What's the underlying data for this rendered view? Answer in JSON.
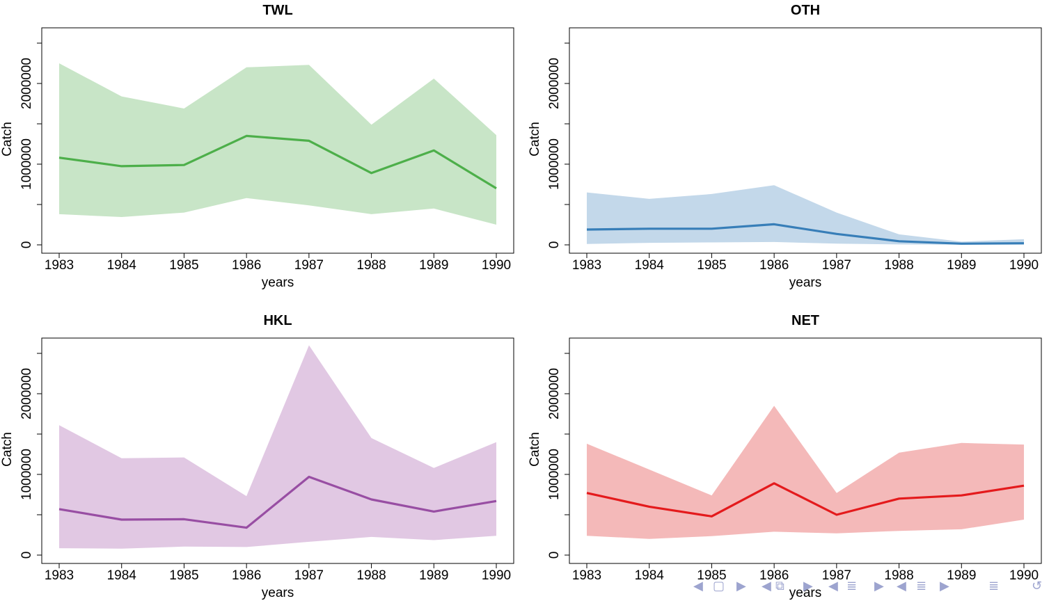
{
  "chart_data": [
    {
      "type": "area",
      "title": "TWL",
      "xlabel": "years",
      "ylabel": "Catch",
      "x": [
        1983,
        1984,
        1985,
        1986,
        1987,
        1988,
        1989,
        1990
      ],
      "xticks": [
        "1983",
        "1984",
        "1985",
        "1986",
        "1987",
        "1988",
        "1989",
        "1990"
      ],
      "yticks": [
        "0",
        "1000000",
        "2000000"
      ],
      "ylim": [
        0,
        2500000
      ],
      "color": "#4daf4a",
      "band_color": "#c8e5c7",
      "series": [
        {
          "role": "mean",
          "values": [
            1080000,
            975000,
            990000,
            1350000,
            1290000,
            890000,
            1170000,
            700000
          ]
        },
        {
          "role": "upper",
          "values": [
            2250000,
            1840000,
            1690000,
            2200000,
            2230000,
            1490000,
            2060000,
            1360000
          ]
        },
        {
          "role": "lower",
          "values": [
            380000,
            345000,
            400000,
            580000,
            490000,
            380000,
            450000,
            250000
          ]
        }
      ]
    },
    {
      "type": "area",
      "title": "OTH",
      "xlabel": "years",
      "ylabel": "Catch",
      "x": [
        1983,
        1984,
        1985,
        1986,
        1987,
        1988,
        1989,
        1990
      ],
      "xticks": [
        "1983",
        "1984",
        "1985",
        "1986",
        "1987",
        "1988",
        "1989",
        "1990"
      ],
      "yticks": [
        "0",
        "1000000",
        "2000000"
      ],
      "ylim": [
        0,
        2500000
      ],
      "color": "#377eb8",
      "band_color": "#c3d8ea",
      "series": [
        {
          "role": "mean",
          "values": [
            190000,
            200000,
            200000,
            255000,
            135000,
            45000,
            15000,
            20000
          ]
        },
        {
          "role": "upper",
          "values": [
            650000,
            570000,
            630000,
            740000,
            400000,
            130000,
            40000,
            70000
          ]
        },
        {
          "role": "lower",
          "values": [
            10000,
            25000,
            30000,
            35000,
            15000,
            5000,
            2000,
            3000
          ]
        }
      ]
    },
    {
      "type": "area",
      "title": "HKL",
      "xlabel": "years",
      "ylabel": "Catch",
      "x": [
        1983,
        1984,
        1985,
        1986,
        1987,
        1988,
        1989,
        1990
      ],
      "xticks": [
        "1983",
        "1984",
        "1985",
        "1986",
        "1987",
        "1988",
        "1989",
        "1990"
      ],
      "yticks": [
        "0",
        "1000000",
        "2000000"
      ],
      "ylim": [
        0,
        2500000
      ],
      "color": "#984ea3",
      "band_color": "#e1c8e3",
      "series": [
        {
          "role": "mean",
          "values": [
            570000,
            440000,
            445000,
            340000,
            970000,
            690000,
            540000,
            670000
          ]
        },
        {
          "role": "upper",
          "values": [
            1610000,
            1200000,
            1210000,
            730000,
            2600000,
            1450000,
            1080000,
            1400000
          ]
        },
        {
          "role": "lower",
          "values": [
            85000,
            80000,
            105000,
            100000,
            165000,
            225000,
            185000,
            240000
          ]
        }
      ]
    },
    {
      "type": "area",
      "title": "NET",
      "xlabel": "years",
      "ylabel": "Catch",
      "x": [
        1983,
        1984,
        1985,
        1986,
        1987,
        1988,
        1989,
        1990
      ],
      "xticks": [
        "1983",
        "1984",
        "1985",
        "1986",
        "1987",
        "1988",
        "1989",
        "1990"
      ],
      "yticks": [
        "0",
        "1000000",
        "2000000"
      ],
      "ylim": [
        0,
        2500000
      ],
      "color": "#e41a1c",
      "band_color": "#f4b9b9",
      "series": [
        {
          "role": "mean",
          "values": [
            770000,
            600000,
            480000,
            890000,
            500000,
            700000,
            740000,
            860000
          ]
        },
        {
          "role": "upper",
          "values": [
            1380000,
            1060000,
            740000,
            1850000,
            770000,
            1270000,
            1390000,
            1370000
          ]
        },
        {
          "role": "lower",
          "values": [
            240000,
            200000,
            235000,
            290000,
            270000,
            300000,
            320000,
            440000
          ]
        }
      ]
    }
  ],
  "nav_icons": [
    "arrow-left-icon",
    "frame-icon",
    "arrow-right-icon",
    "arrow-left-icon",
    "section-icon",
    "arrow-right-icon",
    "arrow-left-icon",
    "subsection-icon",
    "arrow-right-icon",
    "arrow-left-icon",
    "outline-icon",
    "arrow-right-icon",
    "search-icon",
    "back-icon"
  ]
}
